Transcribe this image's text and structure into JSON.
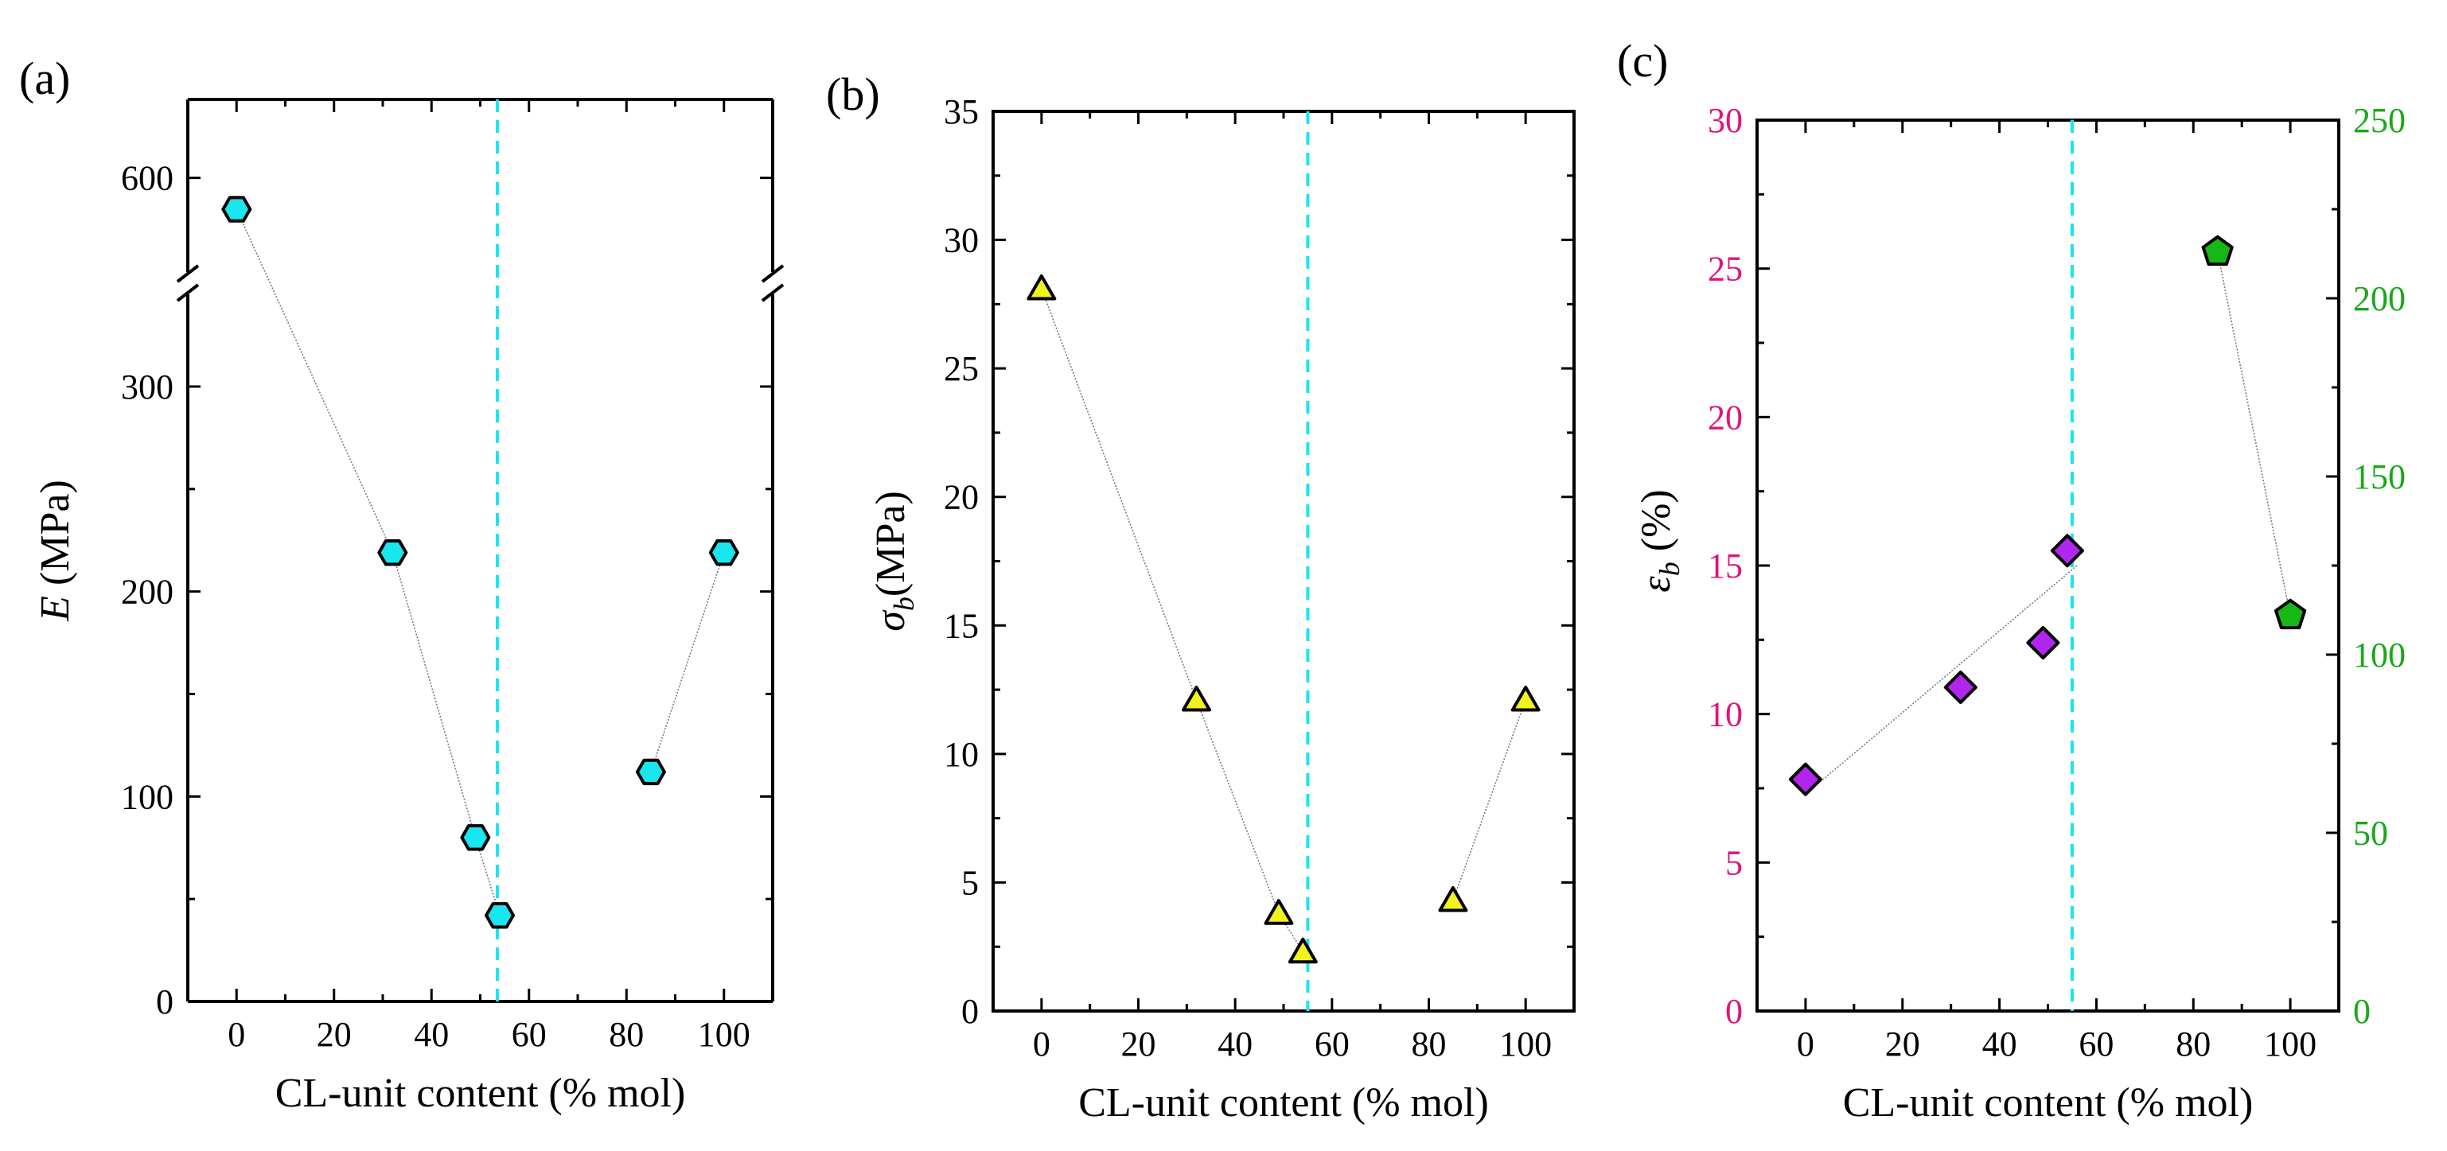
{
  "chart_data": [
    {
      "panel_label": "(a)",
      "type": "scatter",
      "xlabel": "CL-unit content (% mol)",
      "ylabel_var": "E",
      "ylabel_sub": "",
      "ylabel_unit": " (MPa)",
      "xlim": [
        -10,
        110
      ],
      "ylim_lower": [
        0,
        345
      ],
      "ylim_upper": [
        540,
        650
      ],
      "axis_break_y": true,
      "xticks": [
        0,
        20,
        40,
        60,
        80,
        100
      ],
      "xtick_labels": [
        "0",
        "20",
        "40",
        "60",
        "80",
        "100"
      ],
      "yticks": [
        0,
        100,
        200,
        300,
        600
      ],
      "ytick_labels": [
        "0",
        "100",
        "200",
        "300",
        "600"
      ],
      "vline_x": 53.5,
      "marker": "hexagon",
      "marker_color": "#19e6ee",
      "series": [
        {
          "x": [
            0,
            32,
            49,
            54
          ],
          "y": [
            580,
            219,
            80,
            42
          ]
        },
        {
          "x": [
            85,
            100
          ],
          "y": [
            112,
            219
          ]
        }
      ]
    },
    {
      "panel_label": "(b)",
      "type": "scatter",
      "xlabel": "CL-unit content (% mol)",
      "ylabel_var": "σ",
      "ylabel_sub": "b",
      "ylabel_unit": "(MPa)",
      "xlim": [
        -10,
        110
      ],
      "ylim": [
        0,
        35
      ],
      "xticks": [
        0,
        20,
        40,
        60,
        80,
        100
      ],
      "xtick_labels": [
        "0",
        "20",
        "40",
        "60",
        "80",
        "100"
      ],
      "yticks": [
        0,
        5,
        10,
        15,
        20,
        25,
        30,
        35
      ],
      "ytick_labels": [
        "0",
        "5",
        "10",
        "15",
        "20",
        "25",
        "30",
        "35"
      ],
      "vline_x": 55,
      "marker": "triangle",
      "marker_color": "#f2f21e",
      "series": [
        {
          "x": [
            0,
            32,
            49,
            54
          ],
          "y": [
            28.1,
            12.1,
            3.8,
            2.3
          ]
        },
        {
          "x": [
            85,
            100
          ],
          "y": [
            4.3,
            12.1
          ]
        }
      ]
    },
    {
      "panel_label": "(c)",
      "type": "scatter",
      "xlabel": "CL-unit content (% mol)",
      "ylabel_var": "ε",
      "ylabel_sub": "b",
      "ylabel_unit": " (%)",
      "xlim": [
        -10,
        110
      ],
      "ylim_left": [
        0,
        30
      ],
      "ylim_right": [
        0,
        250
      ],
      "xticks": [
        0,
        20,
        40,
        60,
        80,
        100
      ],
      "xtick_labels": [
        "0",
        "20",
        "40",
        "60",
        "80",
        "100"
      ],
      "yticks_left": [
        0,
        5,
        10,
        15,
        20,
        25,
        30
      ],
      "ytick_labels_left": [
        "0",
        "5",
        "10",
        "15",
        "20",
        "25",
        "30"
      ],
      "yticks_right": [
        0,
        50,
        100,
        150,
        200,
        250
      ],
      "ytick_labels_right": [
        "0",
        "50",
        "100",
        "150",
        "200",
        "250"
      ],
      "left_axis_color": "#e0147c",
      "right_axis_color": "#18a818",
      "vline_x": 55,
      "series": [
        {
          "axis": "left",
          "marker": "diamond",
          "marker_color": "#b026ee",
          "x": [
            0,
            32,
            49,
            54
          ],
          "y": [
            7.8,
            10.9,
            12.4,
            15.5
          ],
          "fit_line": {
            "x": [
              0,
              56
            ],
            "y": [
              7.3,
              15.0
            ]
          }
        },
        {
          "axis": "right",
          "marker": "pentagon",
          "marker_color": "#16b816",
          "x": [
            85,
            100
          ],
          "y": [
            213,
            111
          ]
        }
      ]
    }
  ],
  "colors": {
    "vline": "#19e6ee",
    "connector": "#7a7a7a",
    "axis": "#000000"
  }
}
